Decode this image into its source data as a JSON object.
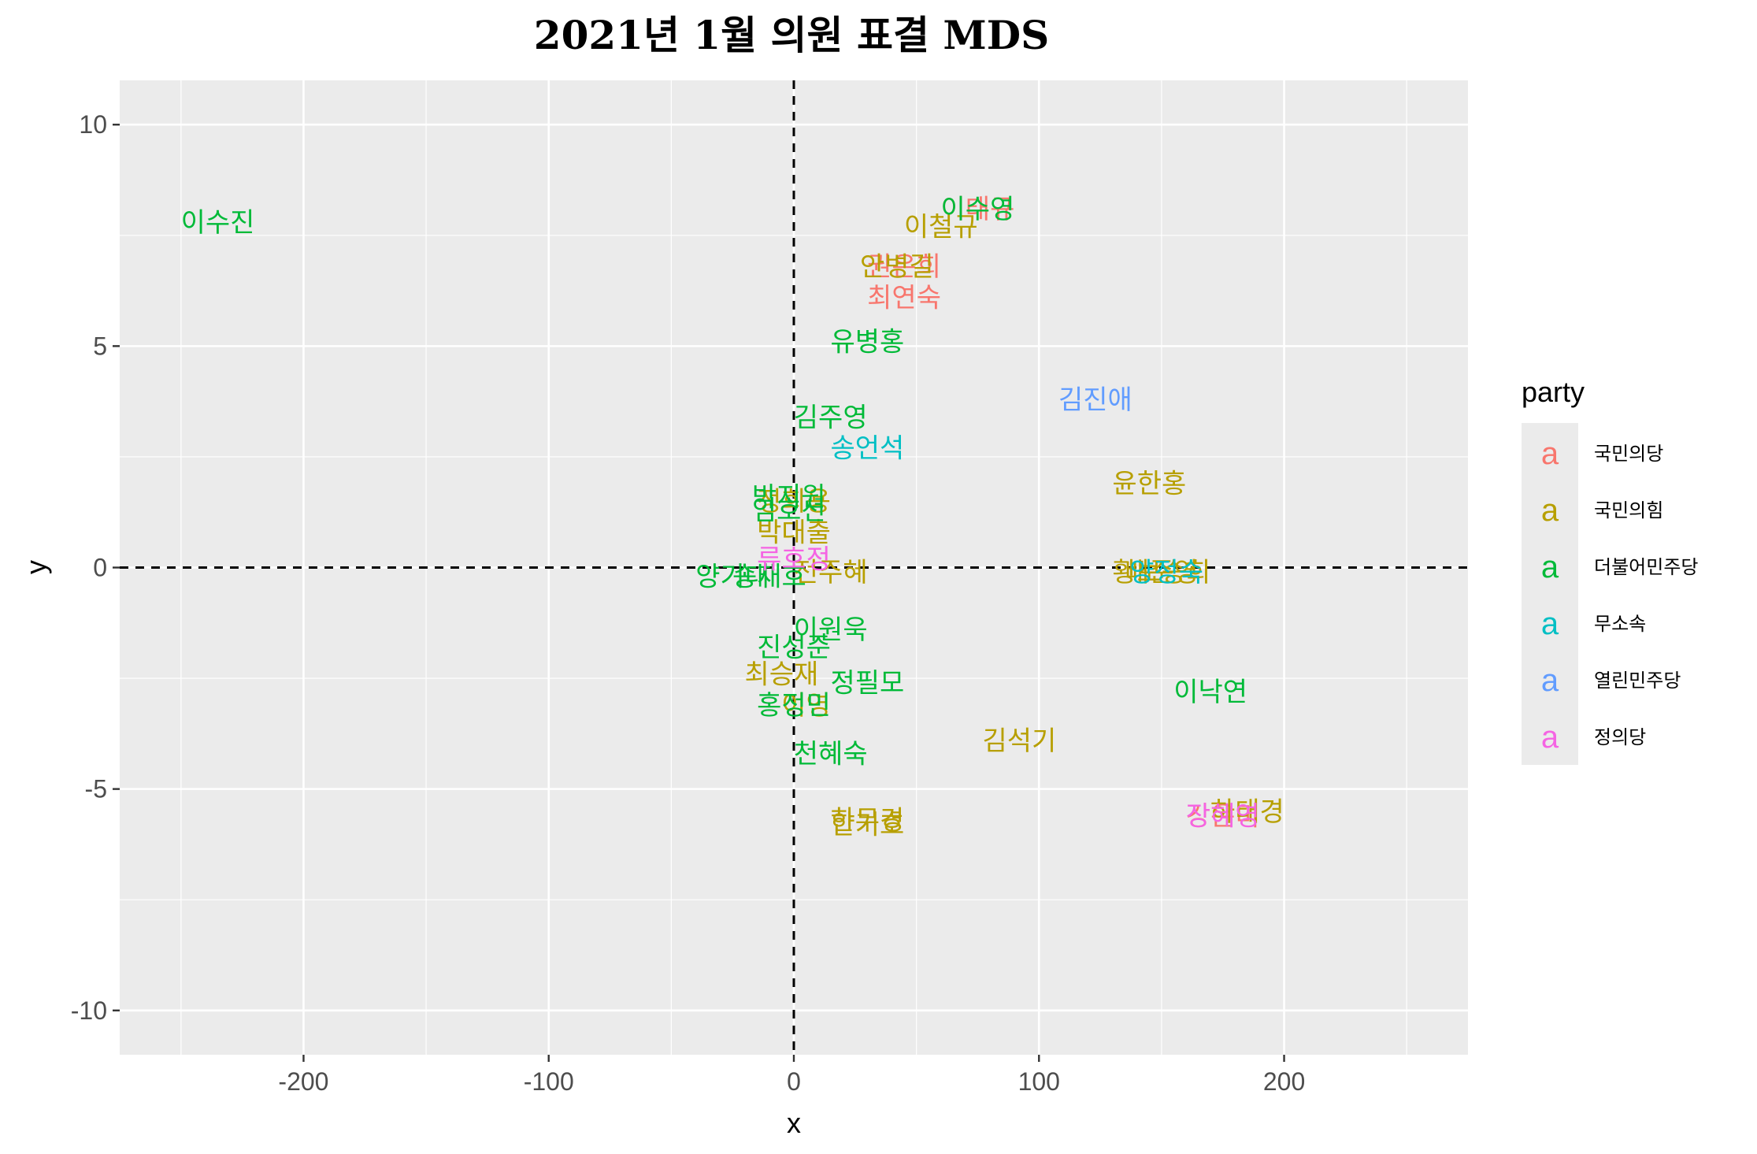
{
  "chart_data": {
    "type": "scatter",
    "title": "2021년 1월 의원 표결 MDS",
    "xlabel": "x",
    "ylabel": "y",
    "xlim": [
      -275,
      275
    ],
    "ylim": [
      -11,
      11
    ],
    "xticks": [
      -200,
      -100,
      0,
      100,
      200
    ],
    "yticks": [
      -10,
      -5,
      0,
      5,
      10
    ],
    "xtick_labels": [
      "-200",
      "-100",
      "0",
      "100",
      "200"
    ],
    "ytick_labels": [
      "-10",
      "-5",
      "0",
      "5",
      "10"
    ],
    "reference_lines": {
      "x": 0,
      "y": 0,
      "style": "dashed"
    },
    "grid": true,
    "legend_title": "party",
    "legend_position": "right",
    "series": [
      {
        "name": "국민의당",
        "color": "#F8766D",
        "points": [
          {
            "label": "권은희",
            "x": 45,
            "y": 6.8
          },
          {
            "label": "최연숙",
            "x": 45,
            "y": 6.1
          },
          {
            "label": "이태규",
            "x": 75,
            "y": 8.1
          },
          {
            "label": "강은미",
            "x": 175,
            "y": -5.6
          }
        ]
      },
      {
        "name": "국민의힘",
        "color": "#B79F00",
        "points": [
          {
            "label": "이철규",
            "x": 60,
            "y": 7.7
          },
          {
            "label": "안병길",
            "x": 42,
            "y": 6.8
          },
          {
            "label": "윤한홍",
            "x": 145,
            "y": 1.9
          },
          {
            "label": "황보승희",
            "x": 150,
            "y": -0.1
          },
          {
            "label": "배준영",
            "x": 150,
            "y": -0.1
          },
          {
            "label": "김석기",
            "x": 92,
            "y": -3.9
          },
          {
            "label": "한무경",
            "x": 30,
            "y": -5.7
          },
          {
            "label": "한기호",
            "x": 30,
            "y": -5.8
          },
          {
            "label": "최승재",
            "x": -5,
            "y": -2.4
          },
          {
            "label": "이영",
            "x": 5,
            "y": -3.1
          },
          {
            "label": "하태경",
            "x": 185,
            "y": -5.5
          },
          {
            "label": "정희용",
            "x": 0,
            "y": 1.5
          },
          {
            "label": "박대출",
            "x": 0,
            "y": 0.8
          },
          {
            "label": "전주혜",
            "x": 15,
            "y": -0.1
          }
        ]
      },
      {
        "name": "더불어민주당",
        "color": "#00BA38",
        "points": [
          {
            "label": "이수진",
            "x": -235,
            "y": 7.8
          },
          {
            "label": "이수영",
            "x": 75,
            "y": 8.1
          },
          {
            "label": "유병홍",
            "x": 30,
            "y": 5.1
          },
          {
            "label": "김주영",
            "x": 15,
            "y": 3.4
          },
          {
            "label": "박지원",
            "x": -2,
            "y": 1.6
          },
          {
            "label": "임호선",
            "x": -2,
            "y": 1.3
          },
          {
            "label": "양기대",
            "x": -25,
            "y": -0.2
          },
          {
            "label": "송재호",
            "x": -10,
            "y": -0.2
          },
          {
            "label": "이원욱",
            "x": 15,
            "y": -1.4
          },
          {
            "label": "진성준",
            "x": 0,
            "y": -1.8
          },
          {
            "label": "정필모",
            "x": 30,
            "y": -2.6
          },
          {
            "label": "홍정민",
            "x": 0,
            "y": -3.1
          },
          {
            "label": "천혜숙",
            "x": 15,
            "y": -4.2
          },
          {
            "label": "이낙연",
            "x": 170,
            "y": -2.8
          }
        ]
      },
      {
        "name": "무소속",
        "color": "#00BFC4",
        "points": [
          {
            "label": "송언석",
            "x": 30,
            "y": 2.7
          },
          {
            "label": "양정숙",
            "x": 152,
            "y": -0.1
          }
        ]
      },
      {
        "name": "열린민주당",
        "color": "#619CFF",
        "points": [
          {
            "label": "김진애",
            "x": 123,
            "y": 3.8
          }
        ]
      },
      {
        "name": "정의당",
        "color": "#F564E3",
        "points": [
          {
            "label": "류호정",
            "x": 0,
            "y": 0.2
          },
          {
            "label": "장혜영",
            "x": 175,
            "y": -5.6
          }
        ]
      }
    ]
  }
}
